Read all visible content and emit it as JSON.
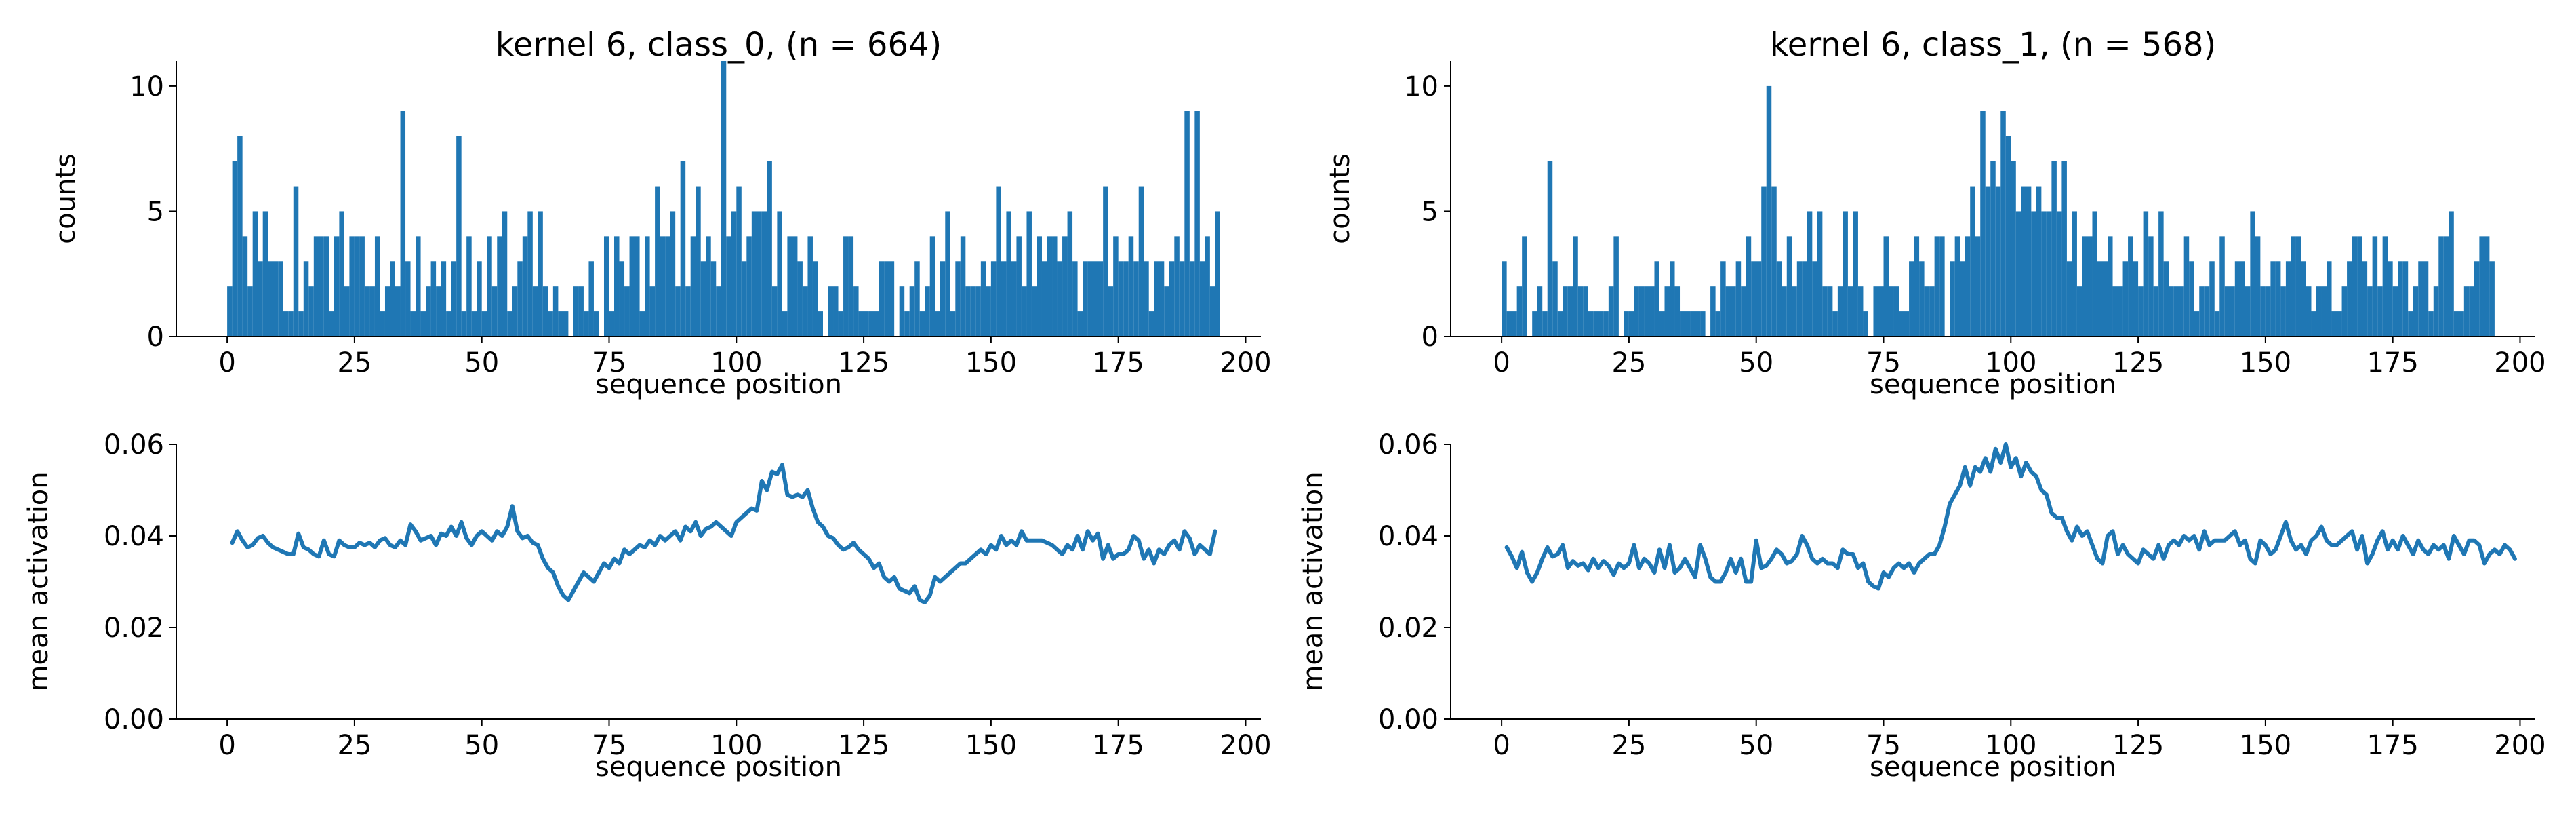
{
  "figure": {
    "background": "#ffffff",
    "series_color": "#1f77b4"
  },
  "chart_data": [
    {
      "id": "hist_class0",
      "type": "bar",
      "title": "kernel 6, class_0, (n = 664)",
      "xlabel": "sequence position",
      "ylabel": "counts",
      "xlim": [
        -10,
        203
      ],
      "ylim": [
        0,
        11
      ],
      "xticks": [
        0,
        25,
        50,
        75,
        100,
        125,
        150,
        175,
        200
      ],
      "yticks": [
        0,
        5,
        10
      ],
      "x_start": 0,
      "bin_width": 1,
      "values": [
        2,
        7,
        8,
        4,
        2,
        5,
        3,
        5,
        3,
        3,
        3,
        1,
        1,
        6,
        1,
        3,
        2,
        4,
        4,
        4,
        1,
        4,
        5,
        2,
        4,
        4,
        4,
        2,
        2,
        4,
        1,
        2,
        3,
        2,
        9,
        3,
        1,
        4,
        1,
        2,
        3,
        2,
        3,
        1,
        3,
        8,
        1,
        4,
        1,
        3,
        1,
        4,
        2,
        4,
        5,
        1,
        2,
        3,
        4,
        5,
        2,
        5,
        2,
        1,
        2,
        1,
        1,
        0,
        2,
        2,
        1,
        3,
        1,
        0,
        4,
        1,
        4,
        3,
        2,
        4,
        4,
        1,
        4,
        2,
        6,
        4,
        4,
        5,
        2,
        7,
        2,
        4,
        6,
        3,
        4,
        3,
        2,
        11,
        4,
        5,
        6,
        3,
        4,
        5,
        5,
        5,
        7,
        2,
        5,
        1,
        4,
        4,
        3,
        2,
        4,
        3,
        1,
        0,
        2,
        2,
        1,
        4,
        4,
        2,
        1,
        1,
        1,
        1,
        3,
        3,
        3,
        0,
        2,
        1,
        2,
        3,
        1,
        2,
        4,
        1,
        3,
        5,
        1,
        3,
        4,
        2,
        2,
        2,
        3,
        2,
        3,
        6,
        3,
        5,
        3,
        4,
        2,
        5,
        2,
        4,
        3,
        4,
        4,
        3,
        4,
        5,
        3,
        1,
        3,
        3,
        3,
        3,
        6,
        2,
        4,
        3,
        3,
        4,
        3,
        6,
        3,
        1,
        3,
        3,
        2,
        3,
        4,
        3,
        9,
        3,
        9,
        3,
        4,
        2,
        5
      ]
    },
    {
      "id": "hist_class1",
      "type": "bar",
      "title": "kernel 6, class_1, (n = 568)",
      "xlabel": "sequence position",
      "ylabel": "counts",
      "xlim": [
        -10,
        203
      ],
      "ylim": [
        0,
        11
      ],
      "xticks": [
        0,
        25,
        50,
        75,
        100,
        125,
        150,
        175,
        200
      ],
      "yticks": [
        0,
        5,
        10
      ],
      "x_start": 0,
      "bin_width": 1,
      "values": [
        3,
        1,
        1,
        2,
        4,
        0,
        1,
        2,
        1,
        7,
        3,
        1,
        2,
        2,
        4,
        2,
        2,
        1,
        1,
        1,
        1,
        2,
        4,
        0,
        1,
        1,
        2,
        2,
        2,
        2,
        3,
        1,
        2,
        3,
        2,
        1,
        1,
        1,
        1,
        1,
        0,
        2,
        1,
        3,
        2,
        2,
        3,
        2,
        4,
        3,
        3,
        6,
        10,
        6,
        3,
        2,
        4,
        2,
        3,
        3,
        5,
        3,
        5,
        2,
        2,
        1,
        2,
        5,
        2,
        5,
        2,
        1,
        0,
        2,
        2,
        4,
        2,
        2,
        1,
        1,
        3,
        4,
        3,
        2,
        2,
        4,
        4,
        0,
        3,
        4,
        3,
        4,
        6,
        4,
        9,
        6,
        7,
        6,
        9,
        8,
        7,
        5,
        6,
        6,
        5,
        6,
        5,
        5,
        7,
        5,
        7,
        3,
        5,
        2,
        4,
        4,
        5,
        3,
        3,
        4,
        2,
        2,
        3,
        4,
        3,
        2,
        5,
        4,
        2,
        5,
        3,
        2,
        2,
        2,
        4,
        3,
        1,
        2,
        2,
        3,
        1,
        4,
        2,
        2,
        3,
        3,
        2,
        5,
        4,
        2,
        2,
        3,
        3,
        2,
        3,
        4,
        4,
        3,
        2,
        1,
        2,
        2,
        3,
        1,
        1,
        2,
        3,
        4,
        4,
        3,
        2,
        4,
        2,
        4,
        3,
        2,
        3,
        3,
        1,
        2,
        3,
        3,
        1,
        2,
        4,
        4,
        5,
        1,
        1,
        2,
        2,
        3,
        4,
        4,
        3
      ]
    },
    {
      "id": "line_class0",
      "type": "line",
      "title": "",
      "xlabel": "sequence position",
      "ylabel": "mean activation",
      "xlim": [
        -10,
        203
      ],
      "ylim": [
        0,
        0.06
      ],
      "xticks": [
        0,
        25,
        50,
        75,
        100,
        125,
        150,
        175,
        200
      ],
      "yticks": [
        0.0,
        0.02,
        0.04,
        0.06
      ],
      "ytick_labels": [
        "0.00",
        "0.02",
        "0.04",
        "0.06"
      ],
      "x_start": 1,
      "values": [
        0.0385,
        0.041,
        0.039,
        0.0375,
        0.038,
        0.0395,
        0.04,
        0.0385,
        0.0375,
        0.037,
        0.0365,
        0.036,
        0.036,
        0.0405,
        0.0375,
        0.037,
        0.036,
        0.0355,
        0.039,
        0.036,
        0.0355,
        0.039,
        0.038,
        0.0375,
        0.0375,
        0.0385,
        0.038,
        0.0385,
        0.0375,
        0.039,
        0.0395,
        0.038,
        0.0375,
        0.039,
        0.038,
        0.0425,
        0.041,
        0.039,
        0.0395,
        0.04,
        0.038,
        0.0405,
        0.04,
        0.042,
        0.04,
        0.043,
        0.0395,
        0.038,
        0.04,
        0.041,
        0.04,
        0.039,
        0.041,
        0.04,
        0.042,
        0.0465,
        0.041,
        0.0395,
        0.04,
        0.0385,
        0.038,
        0.035,
        0.033,
        0.032,
        0.029,
        0.027,
        0.026,
        0.028,
        0.03,
        0.032,
        0.031,
        0.03,
        0.032,
        0.034,
        0.033,
        0.035,
        0.034,
        0.037,
        0.036,
        0.037,
        0.038,
        0.0375,
        0.039,
        0.038,
        0.04,
        0.039,
        0.04,
        0.041,
        0.039,
        0.042,
        0.041,
        0.043,
        0.04,
        0.0415,
        0.042,
        0.043,
        0.042,
        0.041,
        0.04,
        0.043,
        0.044,
        0.045,
        0.046,
        0.0455,
        0.052,
        0.05,
        0.054,
        0.0535,
        0.0555,
        0.049,
        0.0485,
        0.049,
        0.0485,
        0.05,
        0.046,
        0.043,
        0.042,
        0.04,
        0.0395,
        0.038,
        0.037,
        0.0375,
        0.0385,
        0.037,
        0.036,
        0.035,
        0.033,
        0.034,
        0.031,
        0.03,
        0.031,
        0.0285,
        0.028,
        0.0275,
        0.029,
        0.026,
        0.0255,
        0.027,
        0.031,
        0.03,
        0.031,
        0.032,
        0.033,
        0.034,
        0.034,
        0.035,
        0.036,
        0.037,
        0.036,
        0.038,
        0.037,
        0.04,
        0.038,
        0.039,
        0.038,
        0.041,
        0.039,
        0.039,
        0.039,
        0.039,
        0.0385,
        0.038,
        0.037,
        0.036,
        0.038,
        0.037,
        0.04,
        0.037,
        0.041,
        0.039,
        0.0405,
        0.035,
        0.038,
        0.035,
        0.036,
        0.036,
        0.037,
        0.04,
        0.039,
        0.035,
        0.037,
        0.034,
        0.037,
        0.036,
        0.038,
        0.039,
        0.037,
        0.041,
        0.0395,
        0.036,
        0.038,
        0.037,
        0.036,
        0.041
      ]
    },
    {
      "id": "line_class1",
      "type": "line",
      "title": "",
      "xlabel": "sequence position",
      "ylabel": "mean activation",
      "xlim": [
        -10,
        203
      ],
      "ylim": [
        0,
        0.06
      ],
      "xticks": [
        0,
        25,
        50,
        75,
        100,
        125,
        150,
        175,
        200
      ],
      "yticks": [
        0.0,
        0.02,
        0.04,
        0.06
      ],
      "ytick_labels": [
        "0.00",
        "0.02",
        "0.04",
        "0.06"
      ],
      "x_start": 1,
      "values": [
        0.0375,
        0.0355,
        0.033,
        0.0365,
        0.032,
        0.03,
        0.032,
        0.035,
        0.0375,
        0.0355,
        0.036,
        0.038,
        0.033,
        0.0345,
        0.0335,
        0.034,
        0.0325,
        0.035,
        0.033,
        0.0345,
        0.0335,
        0.0315,
        0.034,
        0.033,
        0.034,
        0.038,
        0.033,
        0.035,
        0.034,
        0.032,
        0.037,
        0.033,
        0.038,
        0.032,
        0.033,
        0.035,
        0.033,
        0.031,
        0.038,
        0.035,
        0.031,
        0.03,
        0.03,
        0.032,
        0.035,
        0.032,
        0.035,
        0.03,
        0.03,
        0.039,
        0.033,
        0.0335,
        0.035,
        0.037,
        0.036,
        0.034,
        0.0345,
        0.036,
        0.04,
        0.038,
        0.035,
        0.034,
        0.035,
        0.034,
        0.034,
        0.033,
        0.037,
        0.036,
        0.036,
        0.033,
        0.034,
        0.03,
        0.029,
        0.0285,
        0.032,
        0.031,
        0.033,
        0.034,
        0.033,
        0.034,
        0.032,
        0.034,
        0.035,
        0.036,
        0.036,
        0.038,
        0.042,
        0.047,
        0.049,
        0.051,
        0.055,
        0.051,
        0.055,
        0.054,
        0.057,
        0.054,
        0.059,
        0.056,
        0.06,
        0.055,
        0.057,
        0.053,
        0.056,
        0.054,
        0.053,
        0.05,
        0.049,
        0.045,
        0.044,
        0.044,
        0.041,
        0.039,
        0.042,
        0.04,
        0.041,
        0.038,
        0.035,
        0.034,
        0.04,
        0.041,
        0.036,
        0.038,
        0.036,
        0.035,
        0.034,
        0.037,
        0.036,
        0.035,
        0.038,
        0.035,
        0.038,
        0.039,
        0.038,
        0.04,
        0.039,
        0.04,
        0.037,
        0.041,
        0.038,
        0.039,
        0.039,
        0.039,
        0.04,
        0.041,
        0.038,
        0.039,
        0.035,
        0.034,
        0.039,
        0.038,
        0.036,
        0.037,
        0.04,
        0.043,
        0.039,
        0.037,
        0.038,
        0.036,
        0.039,
        0.04,
        0.042,
        0.039,
        0.038,
        0.038,
        0.039,
        0.04,
        0.041,
        0.037,
        0.04,
        0.034,
        0.036,
        0.039,
        0.041,
        0.037,
        0.039,
        0.037,
        0.04,
        0.038,
        0.036,
        0.039,
        0.037,
        0.036,
        0.038,
        0.037,
        0.038,
        0.035,
        0.04,
        0.038,
        0.036,
        0.039,
        0.039,
        0.038,
        0.034,
        0.036,
        0.037,
        0.036,
        0.038,
        0.037,
        0.035
      ]
    }
  ]
}
